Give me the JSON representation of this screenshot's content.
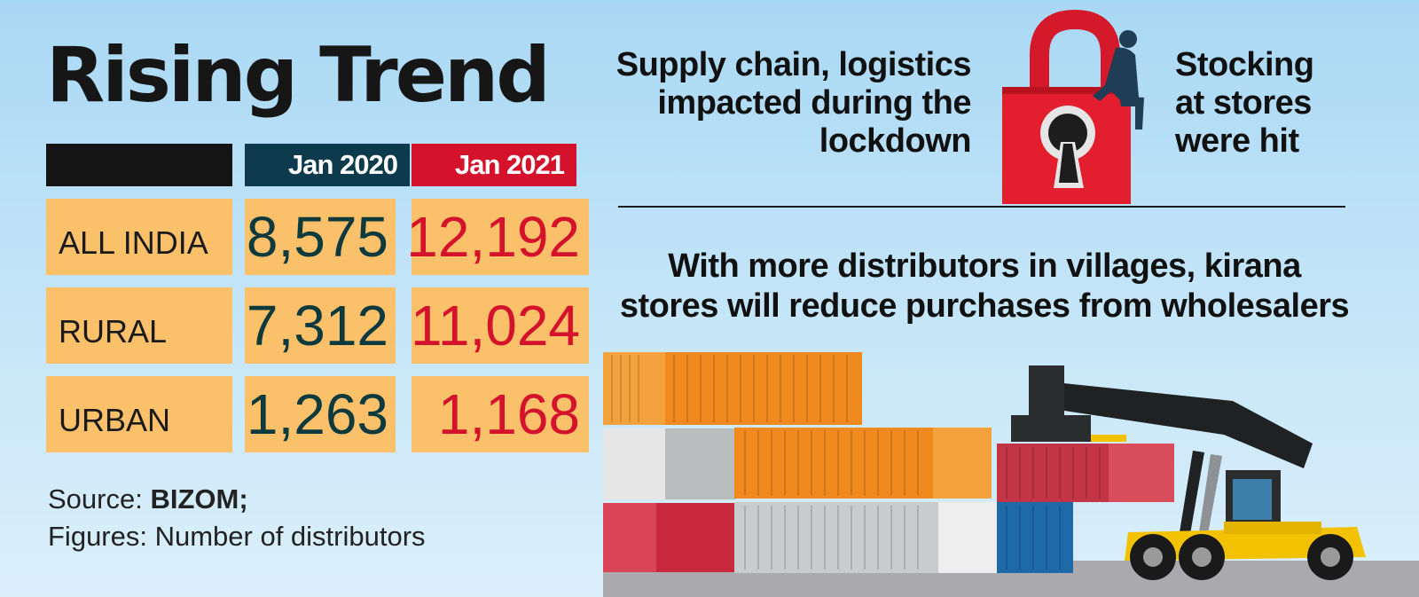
{
  "title": "Rising Trend",
  "chart_data": {
    "type": "table",
    "title": "Rising Trend",
    "columns": [
      "Jan 2020",
      "Jan 2021"
    ],
    "rows": [
      {
        "label": "ALL INDIA",
        "values": [
          "8,575",
          "12,192"
        ]
      },
      {
        "label": "RURAL",
        "values": [
          "7,312",
          "11,024"
        ]
      },
      {
        "label": "URBAN",
        "values": [
          "1,263",
          "1,168"
        ]
      }
    ],
    "colors": {
      "jan2020": "#0e3a4e",
      "jan2021": "#d4122c",
      "cell": "#fbc06a"
    }
  },
  "source": {
    "prefix": "Source: ",
    "name": "BIZOM;",
    "figures": "Figures: Number of distributors"
  },
  "notes": {
    "left": [
      "Supply chain, logistics",
      "impacted during the",
      "lockdown"
    ],
    "right": [
      "Stocking",
      "at stores",
      "were hit"
    ]
  },
  "headline": [
    "With more distributors in villages, kirana",
    "stores will reduce purchases from wholesalers"
  ]
}
